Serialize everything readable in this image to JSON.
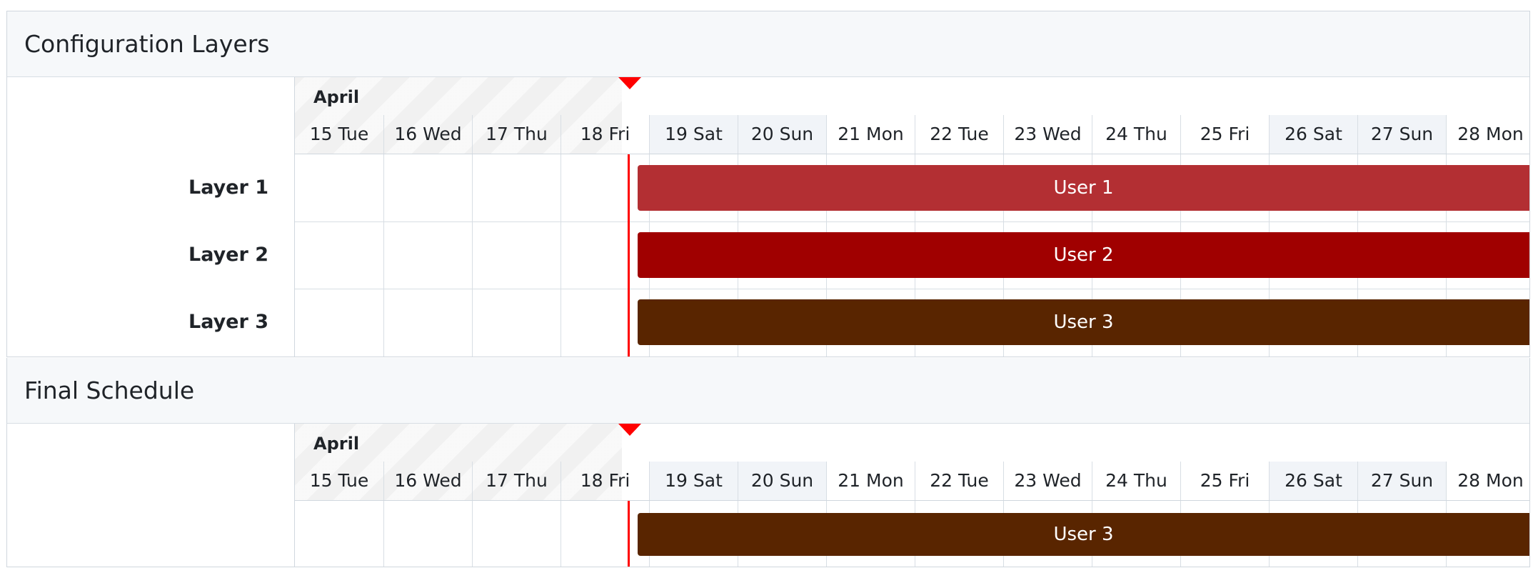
{
  "config_section": {
    "title": "Configuration Layers",
    "layers": [
      {
        "label": "Layer 1",
        "user": "User 1",
        "color": "#b32f33"
      },
      {
        "label": "Layer 2",
        "user": "User 2",
        "color": "#a00000"
      },
      {
        "label": "Layer 3",
        "user": "User 3",
        "color": "#592500"
      }
    ]
  },
  "final_section": {
    "title": "Final Schedule",
    "rows": [
      {
        "label": "",
        "user": "User 3",
        "color": "#592500"
      }
    ]
  },
  "timeline": {
    "month": "April",
    "days": [
      "15 Tue",
      "16 Wed",
      "17 Thu",
      "18 Fri",
      "19 Sat",
      "20 Sun",
      "21 Mon",
      "22 Tue",
      "23 Wed",
      "24 Thu",
      "25 Fri",
      "26 Sat",
      "27 Sun",
      "28 Mon"
    ],
    "weekend_days": [
      "19 Sat",
      "20 Sun",
      "26 Sat",
      "27 Sun"
    ],
    "now_color": "#ff0000"
  }
}
